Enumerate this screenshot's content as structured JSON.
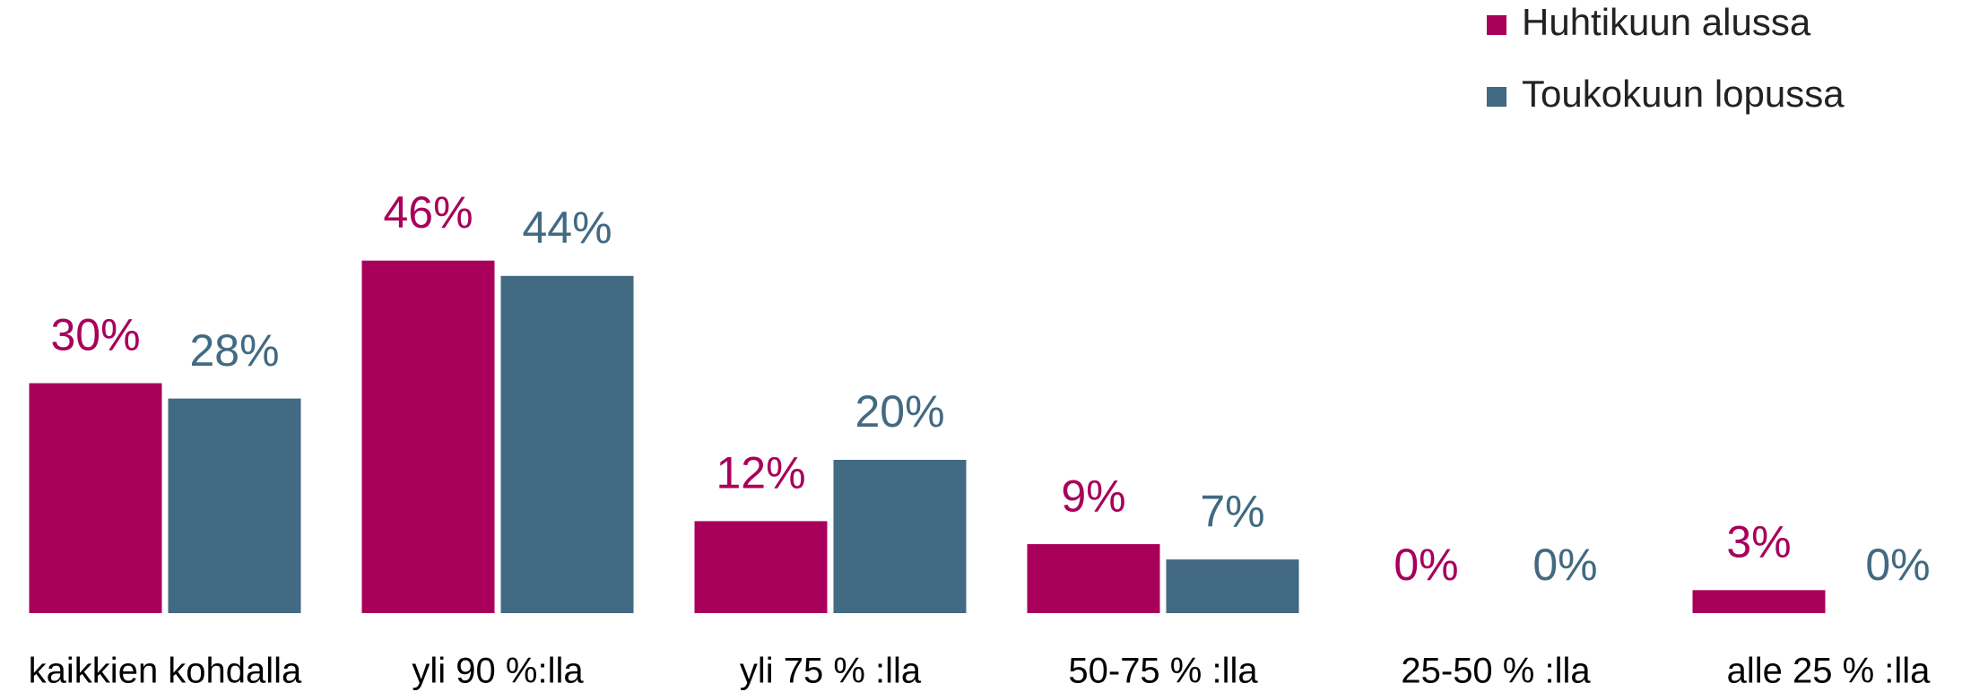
{
  "chart_data": {
    "type": "bar",
    "categories": [
      "kaikkien kohdalla",
      "yli 90 %:lla",
      "yli 75 % :lla",
      "50-75 % :lla",
      "25-50 % :lla",
      "alle 25 % :lla"
    ],
    "series": [
      {
        "name": "Huhtikuun alussa",
        "color": "#a8005a",
        "values": [
          30,
          46,
          12,
          9,
          0,
          3
        ],
        "value_labels": [
          "30%",
          "46%",
          "12%",
          "9%",
          "0%",
          "3%"
        ]
      },
      {
        "name": "Toukokuun lopussa",
        "color": "#426a82",
        "values": [
          28,
          44,
          20,
          7,
          0,
          0
        ],
        "value_labels": [
          "28%",
          "44%",
          "20%",
          "7%",
          "0%",
          "0%"
        ]
      }
    ],
    "legend": "top-right"
  }
}
